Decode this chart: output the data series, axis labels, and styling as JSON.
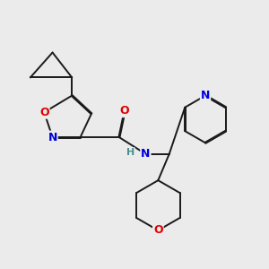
{
  "background_color": "#ebebeb",
  "bond_color": "#1a1a1a",
  "atom_colors": {
    "N": "#0000e0",
    "O": "#e00000",
    "C": "#1a1a1a",
    "H": "#4d9090"
  },
  "font_size": 9,
  "bond_width": 1.4,
  "fig_width": 3.0,
  "fig_height": 3.0,
  "dpi": 100
}
